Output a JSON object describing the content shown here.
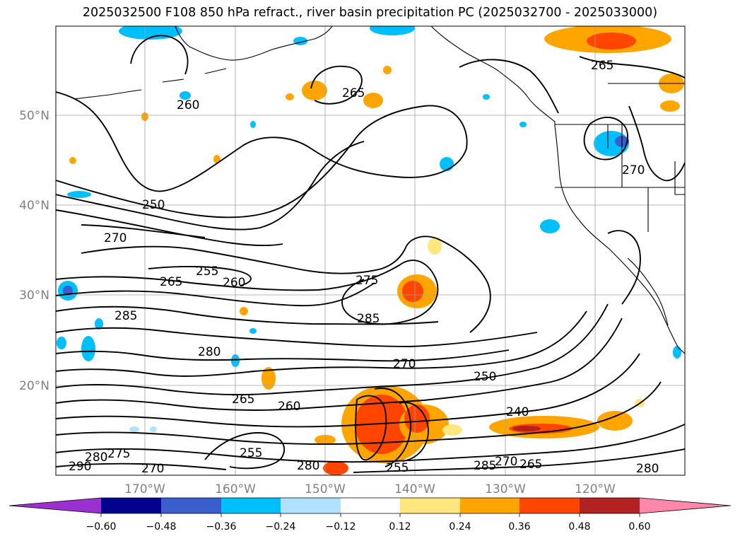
{
  "title": "2025032500 F108 850 hPa refract., river basin precipitation PC (2025032700 - 2025033000)",
  "map": {
    "lat_labels": [
      "50°N",
      "40°N",
      "30°N",
      "20°N"
    ],
    "lon_labels": [
      "170°W",
      "160°W",
      "150°W",
      "140°W",
      "130°W",
      "120°W"
    ],
    "contour_labels": [
      "260",
      "250",
      "270",
      "255",
      "265",
      "260",
      "285",
      "280",
      "265",
      "260",
      "255",
      "265",
      "275",
      "285",
      "270",
      "250",
      "240",
      "270",
      "265",
      "255",
      "290",
      "280",
      "275",
      "270",
      "280",
      "285",
      "270",
      "280",
      "265"
    ]
  },
  "colorbar": {
    "ticks": [
      "−0.60",
      "−0.48",
      "−0.36",
      "−0.24",
      "−0.12",
      "0.12",
      "0.24",
      "0.36",
      "0.48",
      "0.60"
    ],
    "colors": [
      "#9b30d0",
      "#00008c",
      "#3a5fcd",
      "#00bfff",
      "#b0e2ff",
      "#ffffff",
      "#ffe780",
      "#ffa500",
      "#ff4500",
      "#b22222",
      "#ff88aa"
    ]
  }
}
